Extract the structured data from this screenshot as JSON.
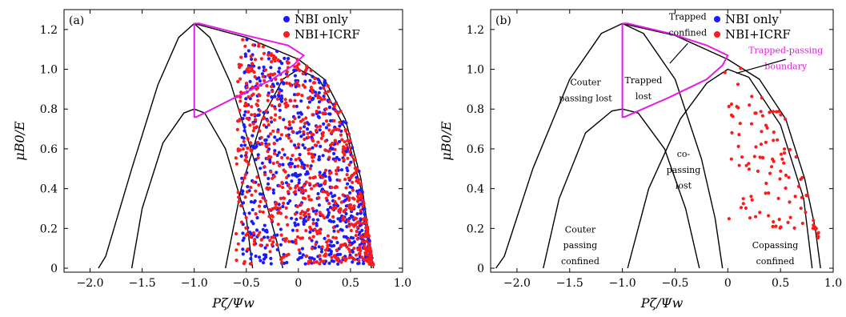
{
  "chart_data": [
    {
      "type": "scatter",
      "panel_label": "(a)",
      "xlabel": "Pζ/Ψw",
      "ylabel": "μB0/E",
      "xlim": [
        -2.25,
        1.0
      ],
      "ylim": [
        -0.02,
        1.3
      ],
      "xticks": [
        "−2.0",
        "−1.5",
        "−1.0",
        "−0.5",
        "0",
        "0.5",
        "1.0"
      ],
      "xtick_values": [
        -2.0,
        -1.5,
        -1.0,
        -0.5,
        0,
        0.5,
        1.0
      ],
      "yticks": [
        "0",
        "0.2",
        "0.4",
        "0.6",
        "0.8",
        "1.0",
        "1.2"
      ],
      "ytick_values": [
        0,
        0.2,
        0.4,
        0.6,
        0.8,
        1.0,
        1.2
      ],
      "legend": {
        "position": "top-right",
        "entries": [
          {
            "name": "NBI only",
            "color": "#1a1aff"
          },
          {
            "name": "NBI+ICRF",
            "color": "#ff1a1a"
          }
        ]
      },
      "boundary_curves": [
        {
          "name": "outer-left",
          "points": [
            [
              -1.92,
              0.0
            ],
            [
              -1.85,
              0.06
            ],
            [
              -1.6,
              0.5
            ],
            [
              -1.35,
              0.92
            ],
            [
              -1.15,
              1.16
            ],
            [
              -1.0,
              1.23
            ]
          ]
        },
        {
          "name": "big-arch-right",
          "points": [
            [
              -1.0,
              1.23
            ],
            [
              -0.85,
              1.16
            ],
            [
              -0.65,
              0.93
            ],
            [
              -0.4,
              0.5
            ],
            [
              -0.2,
              0.12
            ],
            [
              -0.15,
              0.0
            ]
          ]
        },
        {
          "name": "inner-arch",
          "points": [
            [
              -1.6,
              0.0
            ],
            [
              -1.5,
              0.3
            ],
            [
              -1.3,
              0.63
            ],
            [
              -1.1,
              0.78
            ],
            [
              -1.0,
              0.8
            ],
            [
              -0.9,
              0.78
            ],
            [
              -0.7,
              0.6
            ],
            [
              -0.5,
              0.25
            ],
            [
              -0.44,
              0.0
            ]
          ]
        },
        {
          "name": "co-passing-arch",
          "points": [
            [
              -0.7,
              0.0
            ],
            [
              -0.55,
              0.4
            ],
            [
              -0.35,
              0.75
            ],
            [
              -0.15,
              0.95
            ],
            [
              0.0,
              1.0
            ],
            [
              0.2,
              0.95
            ],
            [
              0.45,
              0.7
            ],
            [
              0.6,
              0.4
            ],
            [
              0.7,
              0.0
            ]
          ]
        },
        {
          "name": "outer-top",
          "points": [
            [
              -1.0,
              1.23
            ],
            [
              -0.5,
              1.16
            ],
            [
              0.0,
              1.05
            ],
            [
              0.25,
              0.95
            ],
            [
              0.45,
              0.75
            ],
            [
              0.6,
              0.45
            ],
            [
              0.68,
              0.15
            ],
            [
              0.72,
              0.0
            ]
          ]
        }
      ],
      "trapped_passing_boundary": {
        "color": "#e619e6",
        "points": [
          [
            -1.0,
            1.23
          ],
          [
            -1.0,
            0.76
          ],
          [
            -0.98,
            0.76
          ],
          [
            -0.6,
            0.86
          ],
          [
            -0.25,
            0.95
          ],
          [
            -0.05,
            1.02
          ],
          [
            0.05,
            1.07
          ],
          [
            -0.1,
            1.12
          ],
          [
            -0.5,
            1.17
          ],
          [
            -0.95,
            1.23
          ],
          [
            -1.0,
            1.23
          ]
        ]
      },
      "series": [
        {
          "name": "NBI only",
          "color": "#1a1aff",
          "region": {
            "x_from": -0.55,
            "y_from": 0.02
          }
        },
        {
          "name": "NBI+ICRF",
          "color": "#ff1a1a",
          "region": {
            "x_from": -0.6,
            "y_from": 0.02
          }
        }
      ]
    },
    {
      "type": "scatter",
      "panel_label": "(b)",
      "xlabel": "Pζ/Ψw",
      "ylabel": "μB0/E",
      "xlim": [
        -2.25,
        1.0
      ],
      "ylim": [
        -0.02,
        1.3
      ],
      "xticks": [
        "−2.0",
        "−1.5",
        "−1.0",
        "−0.5",
        "0",
        "0.5",
        "1.0"
      ],
      "xtick_values": [
        -2.0,
        -1.5,
        -1.0,
        -0.5,
        0,
        0.5,
        1.0
      ],
      "yticks": [
        "0",
        "0.2",
        "0.4",
        "0.6",
        "0.8",
        "1.0",
        "1.2"
      ],
      "ytick_values": [
        0,
        0.2,
        0.4,
        0.6,
        0.8,
        1.0,
        1.2
      ],
      "legend": {
        "position": "top-right",
        "entries": [
          {
            "name": "NBI only",
            "color": "#1a1aff"
          },
          {
            "name": "NBI+ICRF",
            "color": "#ff1a1a"
          }
        ]
      },
      "annotations": [
        {
          "text": "Trapped",
          "x": -0.38,
          "y": 1.25
        },
        {
          "text": "confined",
          "x": -0.38,
          "y": 1.17
        },
        {
          "text": "Couter",
          "x": -1.35,
          "y": 0.92
        },
        {
          "text": "passing lost",
          "x": -1.35,
          "y": 0.84
        },
        {
          "text": "Trapped",
          "x": -0.8,
          "y": 0.93
        },
        {
          "text": "lost",
          "x": -0.8,
          "y": 0.85
        },
        {
          "text": "co-",
          "x": -0.42,
          "y": 0.56
        },
        {
          "text": "passing",
          "x": -0.42,
          "y": 0.48
        },
        {
          "text": "lost",
          "x": -0.42,
          "y": 0.4
        },
        {
          "text": "Couter",
          "x": -1.4,
          "y": 0.18
        },
        {
          "text": "passing",
          "x": -1.4,
          "y": 0.1
        },
        {
          "text": "confined",
          "x": -1.4,
          "y": 0.02
        },
        {
          "text": "Copassing",
          "x": 0.45,
          "y": 0.1
        },
        {
          "text": "confined",
          "x": 0.45,
          "y": 0.02
        },
        {
          "text": "Trapped-passing",
          "x": 0.55,
          "y": 1.08,
          "color": "#e619e6"
        },
        {
          "text": "boundary",
          "x": 0.55,
          "y": 1.0,
          "color": "#e619e6"
        }
      ],
      "boundary_curves": [
        {
          "name": "outer-left",
          "points": [
            [
              -2.2,
              0.0
            ],
            [
              -2.12,
              0.06
            ],
            [
              -1.85,
              0.5
            ],
            [
              -1.5,
              0.95
            ],
            [
              -1.2,
              1.18
            ],
            [
              -1.0,
              1.23
            ]
          ]
        },
        {
          "name": "big-arch-right",
          "points": [
            [
              -1.0,
              1.23
            ],
            [
              -0.8,
              1.18
            ],
            [
              -0.5,
              0.95
            ],
            [
              -0.25,
              0.55
            ],
            [
              -0.12,
              0.25
            ],
            [
              -0.05,
              0.0
            ]
          ]
        },
        {
          "name": "inner-arch",
          "points": [
            [
              -1.75,
              0.0
            ],
            [
              -1.6,
              0.35
            ],
            [
              -1.35,
              0.68
            ],
            [
              -1.1,
              0.79
            ],
            [
              -1.0,
              0.8
            ],
            [
              -0.85,
              0.78
            ],
            [
              -0.6,
              0.6
            ],
            [
              -0.4,
              0.3
            ],
            [
              -0.27,
              0.0
            ]
          ]
        },
        {
          "name": "co-passing-arch",
          "points": [
            [
              -0.95,
              0.0
            ],
            [
              -0.75,
              0.4
            ],
            [
              -0.45,
              0.75
            ],
            [
              -0.2,
              0.93
            ],
            [
              0.0,
              1.0
            ],
            [
              0.2,
              0.96
            ],
            [
              0.5,
              0.72
            ],
            [
              0.72,
              0.35
            ],
            [
              0.8,
              0.0
            ]
          ]
        },
        {
          "name": "outer-top",
          "points": [
            [
              -1.0,
              1.23
            ],
            [
              -0.5,
              1.17
            ],
            [
              0.0,
              1.05
            ],
            [
              0.3,
              0.95
            ],
            [
              0.55,
              0.75
            ],
            [
              0.73,
              0.45
            ],
            [
              0.83,
              0.2
            ],
            [
              0.88,
              0.0
            ]
          ]
        }
      ],
      "trapped_passing_boundary": {
        "color": "#e619e6",
        "points": [
          [
            -1.0,
            1.23
          ],
          [
            -1.0,
            0.76
          ],
          [
            -0.98,
            0.76
          ],
          [
            -0.55,
            0.86
          ],
          [
            -0.2,
            0.95
          ],
          [
            -0.05,
            1.02
          ],
          [
            0.0,
            1.07
          ],
          [
            -0.2,
            1.12
          ],
          [
            -0.55,
            1.18
          ],
          [
            -0.95,
            1.23
          ],
          [
            -1.0,
            1.23
          ]
        ]
      },
      "series": [
        {
          "name": "NBI+ICRF",
          "color": "#ff1a1a",
          "region": {
            "x_from": -0.05,
            "y_from": 0.2
          }
        }
      ]
    }
  ]
}
